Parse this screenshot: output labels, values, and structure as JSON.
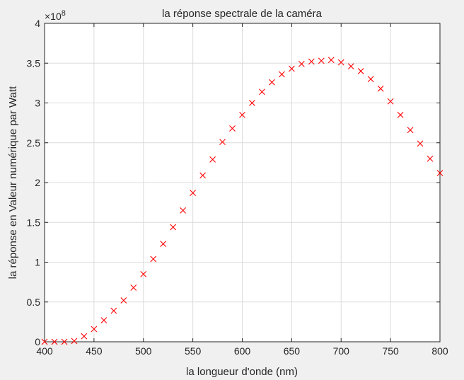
{
  "chart_data": {
    "type": "scatter",
    "title": "la réponse spectrale de la caméra",
    "xlabel": "la longueur d'onde (nm)",
    "ylabel": "la réponse en Valeur numérique par Watt",
    "y_exponent_label": "×10",
    "y_exponent_power": "8",
    "xlim": [
      400,
      800
    ],
    "ylim": [
      0,
      4
    ],
    "y_scale_factor": 100000000,
    "grid": true,
    "marker": "x",
    "marker_color": "#ff0000",
    "x_ticks": [
      "400",
      "450",
      "500",
      "550",
      "600",
      "650",
      "700",
      "750",
      "800"
    ],
    "y_ticks": [
      "0",
      "0.5",
      "1",
      "1.5",
      "2",
      "2.5",
      "3",
      "3.5",
      "4"
    ],
    "x": [
      400,
      410,
      420,
      430,
      440,
      450,
      460,
      470,
      480,
      490,
      500,
      510,
      520,
      530,
      540,
      550,
      560,
      570,
      580,
      590,
      600,
      610,
      620,
      630,
      640,
      650,
      660,
      670,
      680,
      690,
      700,
      710,
      720,
      730,
      740,
      750,
      760,
      770,
      780,
      790,
      800
    ],
    "y": [
      0.0,
      0.0,
      0.0,
      0.01,
      0.07,
      0.16,
      0.27,
      0.39,
      0.52,
      0.68,
      0.85,
      1.04,
      1.23,
      1.44,
      1.65,
      1.87,
      2.09,
      2.29,
      2.51,
      2.68,
      2.85,
      3.0,
      3.14,
      3.26,
      3.36,
      3.43,
      3.49,
      3.52,
      3.53,
      3.54,
      3.51,
      3.46,
      3.4,
      3.3,
      3.18,
      3.02,
      2.85,
      2.66,
      2.49,
      2.3,
      2.12
    ]
  }
}
